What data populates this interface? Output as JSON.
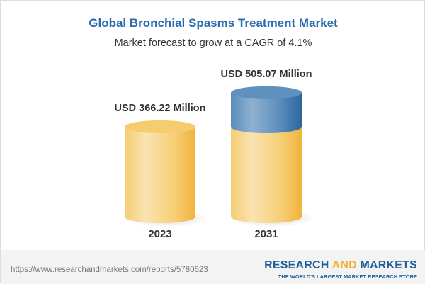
{
  "title": "Global Bronchial Spasms Treatment Market",
  "subtitle": "Market forecast to grow at a CAGR of 4.1%",
  "chart_data": {
    "type": "bar",
    "style": "3d-cylinder",
    "categories": [
      "2023",
      "2031"
    ],
    "values": [
      366.22,
      505.07
    ],
    "data_labels": [
      "USD 366.22 Million",
      "USD 505.07 Million"
    ],
    "unit": "USD Million",
    "colors": {
      "base": "#f4c35a",
      "growth": "#4f86b8"
    }
  },
  "footer": {
    "url": "https://www.researchandmarkets.com/reports/5780623",
    "logo": {
      "part1": "RESEARCH ",
      "part2": "AND",
      "part3": " MARKETS",
      "tagline": "THE WORLD'S LARGEST MARKET RESEARCH STORE"
    }
  }
}
